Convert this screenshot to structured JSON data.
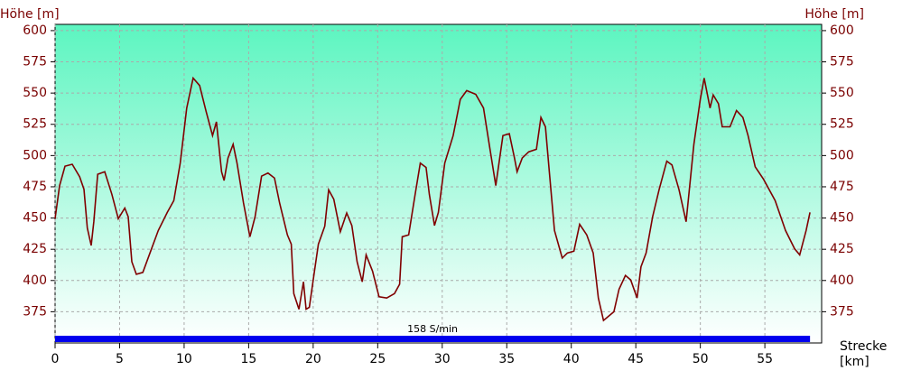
{
  "chart_data": {
    "type": "line",
    "y_label": "Höhe [m]",
    "y2_label": "Höhe [m]",
    "x_label": "Strecke",
    "x_unit": "[km]",
    "annotation": "158 S/min",
    "band_color": "#0000ee",
    "color": "#800000",
    "grid": true,
    "xlim": [
      0,
      59.4
    ],
    "ylim": [
      350,
      605
    ],
    "xticks": [
      0,
      5,
      10,
      15,
      20,
      25,
      30,
      35,
      40,
      45,
      50,
      55
    ],
    "yticks": [
      375,
      400,
      425,
      450,
      475,
      500,
      525,
      550,
      575,
      600
    ],
    "x": [
      0,
      0.35,
      0.77,
      1.33,
      1.9,
      2.24,
      2.5,
      2.8,
      3.0,
      3.3,
      3.85,
      4.4,
      4.9,
      5.4,
      5.67,
      5.95,
      6.3,
      6.8,
      7.35,
      8.0,
      8.7,
      9.2,
      9.7,
      10.2,
      10.7,
      11.2,
      11.7,
      12.2,
      12.5,
      12.9,
      13.1,
      13.4,
      13.8,
      14.1,
      14.6,
      15.1,
      15.5,
      16.0,
      16.5,
      17.0,
      17.4,
      18.0,
      18.3,
      18.5,
      18.9,
      19.25,
      19.45,
      19.7,
      20.1,
      20.4,
      20.9,
      21.2,
      21.6,
      22.1,
      22.6,
      23.0,
      23.4,
      23.8,
      24.1,
      24.6,
      25.1,
      25.7,
      26.3,
      26.7,
      26.9,
      27.4,
      27.9,
      28.3,
      28.75,
      29.0,
      29.4,
      29.7,
      30.2,
      30.85,
      31.4,
      31.9,
      32.6,
      33.2,
      33.7,
      34.15,
      34.7,
      35.2,
      35.6,
      35.8,
      36.2,
      36.7,
      37.3,
      37.65,
      38.0,
      38.3,
      38.7,
      39.3,
      39.7,
      40.2,
      40.65,
      41.2,
      41.7,
      42.1,
      42.5,
      43.3,
      43.7,
      44.2,
      44.6,
      45.1,
      45.4,
      45.8,
      46.3,
      46.8,
      47.4,
      47.8,
      48.35,
      48.9,
      49.5,
      50.0,
      50.3,
      50.75,
      51.0,
      51.4,
      51.7,
      52.3,
      52.8,
      53.3,
      53.7,
      54.25,
      54.9,
      55.8,
      56.6,
      57.3,
      57.7,
      58.2,
      58.5
    ],
    "values": [
      449.5,
      476,
      491.5,
      493,
      483,
      473,
      442,
      428,
      447,
      485,
      487,
      469,
      449.5,
      458,
      451,
      415,
      405,
      406.5,
      422,
      440,
      454.5,
      464,
      494,
      538,
      562,
      556,
      535.5,
      516,
      527,
      487,
      480,
      498,
      509,
      494,
      462,
      435,
      451,
      483.5,
      486,
      482,
      462,
      436.5,
      429,
      389.5,
      377,
      399,
      377,
      378.5,
      407.5,
      429,
      443.5,
      472.5,
      465,
      439,
      454,
      444,
      415,
      399,
      420.5,
      407.5,
      387,
      386,
      389.5,
      397,
      435,
      436.5,
      469,
      494,
      490.5,
      469,
      444,
      454.5,
      494,
      516,
      545,
      552,
      549,
      538,
      505,
      476,
      516,
      517.5,
      498,
      487,
      498,
      503,
      505,
      530.5,
      523,
      487,
      440,
      418,
      422,
      423.5,
      445,
      436.5,
      422,
      386,
      368,
      375,
      393,
      404,
      400.5,
      386,
      411,
      422,
      451,
      472.5,
      495.5,
      492.5,
      472.5,
      447,
      509,
      545,
      562,
      538,
      548.5,
      541.5,
      523,
      523,
      536,
      530.5,
      516,
      491,
      481,
      464,
      440,
      425.5,
      420.5,
      440,
      454.5
    ]
  }
}
